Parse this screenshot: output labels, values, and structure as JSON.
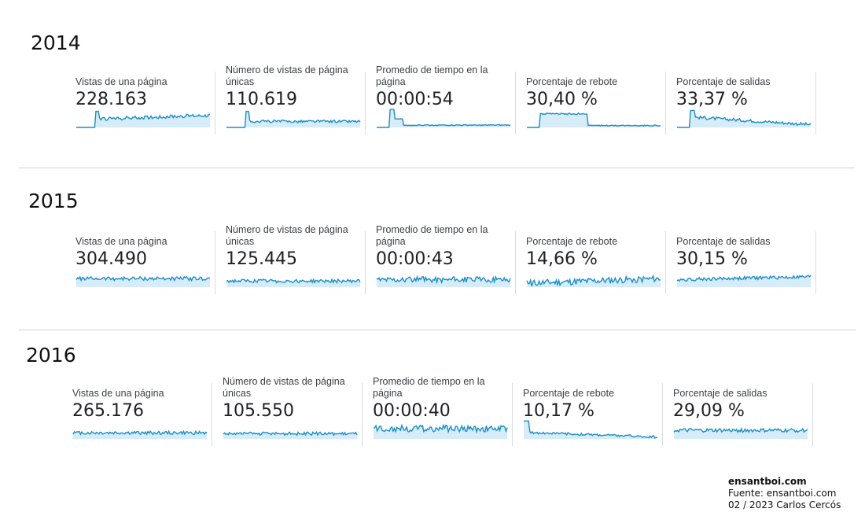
{
  "chart_data": [
    {
      "type": "line",
      "year_label": "2014",
      "metrics": [
        {
          "label": "Vistas de una página",
          "value": "228.163",
          "shape": "step-up-rising"
        },
        {
          "label": "Número de vistas de página únicas",
          "value": "110.619",
          "shape": "step-up-flat"
        },
        {
          "label": "Promedio de tiempo en la página",
          "value": "00:00:54",
          "shape": "spike-decay-low"
        },
        {
          "label": "Porcentaje de rebote",
          "value": "30,40 %",
          "shape": "plateau-then-drop"
        },
        {
          "label": "Porcentaje de salidas",
          "value": "33,37 %",
          "shape": "step-up-decline"
        }
      ]
    },
    {
      "type": "line",
      "year_label": "2015",
      "metrics": [
        {
          "label": "Vistas de una página",
          "value": "304.490",
          "shape": "flat-high"
        },
        {
          "label": "Número de vistas de página únicas",
          "value": "125.445",
          "shape": "flat-mid"
        },
        {
          "label": "Promedio de tiempo en la página",
          "value": "00:00:43",
          "shape": "flat-noisy"
        },
        {
          "label": "Porcentaje de rebote",
          "value": "14,66 %",
          "shape": "low-rising-noisy"
        },
        {
          "label": "Porcentaje de salidas",
          "value": "30,15 %",
          "shape": "flat-slight-rise"
        }
      ]
    },
    {
      "type": "line",
      "year_label": "2016",
      "metrics": [
        {
          "label": "Vistas de una página",
          "value": "265.176",
          "shape": "flat-mid"
        },
        {
          "label": "Número de vistas de página únicas",
          "value": "105.550",
          "shape": "flat-low"
        },
        {
          "label": "Promedio de tiempo en la página",
          "value": "00:00:40",
          "shape": "flat-noisy-high"
        },
        {
          "label": "Porcentaje de rebote",
          "value": "10,17 %",
          "shape": "decline-low"
        },
        {
          "label": "Porcentaje de salidas",
          "value": "29,09 %",
          "shape": "flat-high"
        }
      ]
    }
  ],
  "colors": {
    "line": "#1a8ec9",
    "fill": "#d6ecf8",
    "divider": "#dadce0",
    "separator": "#d0d0d0"
  },
  "credits": {
    "brand": "ensantboi.com",
    "source": "Fuente: ensantboi.com",
    "date_author": "02 / 2023  Carlos Cercós"
  }
}
